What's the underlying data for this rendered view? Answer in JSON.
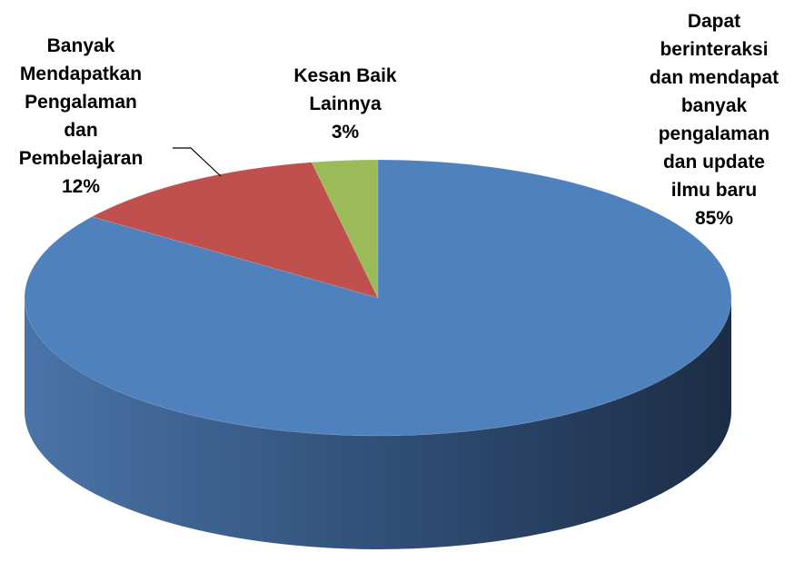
{
  "chart_data": {
    "type": "pie",
    "style": "3d",
    "legend": "none",
    "slices": [
      {
        "label_lines": [
          "Dapat",
          "berinteraksi",
          "dan mendapat",
          "banyak",
          "pengalaman",
          "dan update",
          "ilmu baru"
        ],
        "percent_label": "85%",
        "value": 85,
        "color": "#4F81BD"
      },
      {
        "label_lines": [
          "Banyak",
          "Mendapatkan",
          "Pengalaman",
          "dan",
          "Pembelajaran"
        ],
        "percent_label": "12%",
        "value": 12,
        "color": "#C0504D"
      },
      {
        "label_lines": [
          "Kesan Baik",
          "Lainnya"
        ],
        "percent_label": "3%",
        "value": 3,
        "color": "#9BBB59"
      }
    ]
  }
}
